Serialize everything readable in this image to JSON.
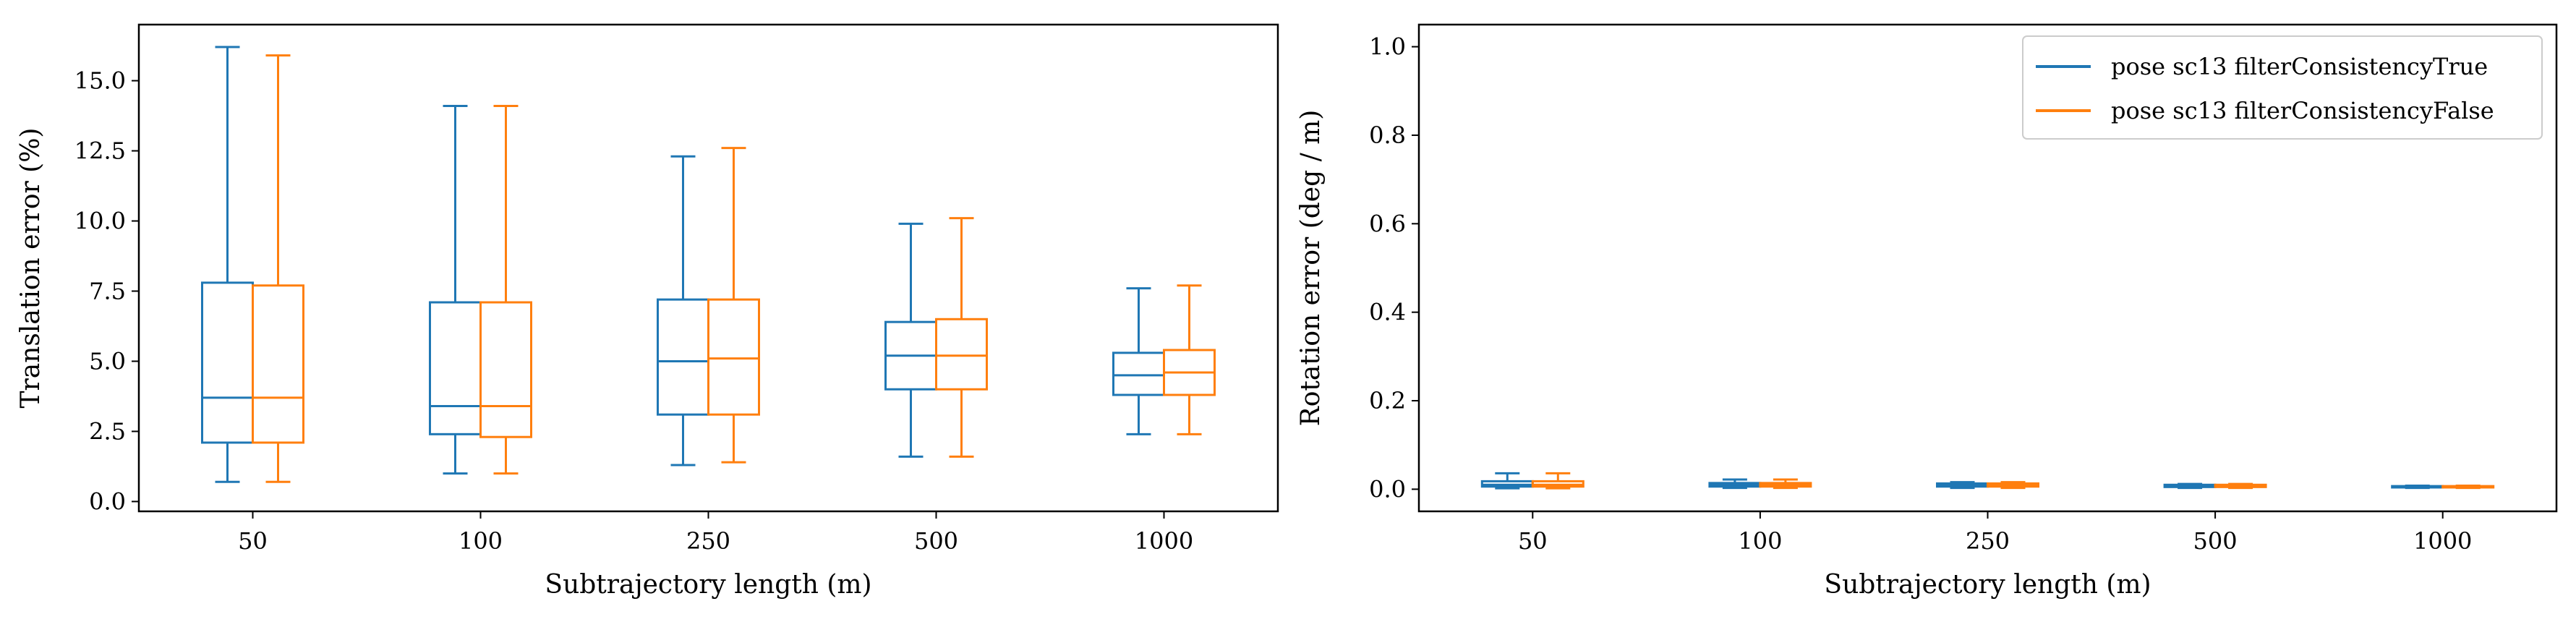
{
  "colors": {
    "series1": "#1f77b4",
    "series2": "#ff7f0e",
    "axis": "#000000"
  },
  "chart_data": [
    {
      "type": "box",
      "xlabel": "Subtrajectory length (m)",
      "ylabel": "Translation error (%)",
      "categories": [
        "50",
        "100",
        "250",
        "500",
        "1000"
      ],
      "ylim": [
        -0.35,
        17.0
      ],
      "yticks": [
        0.0,
        2.5,
        5.0,
        7.5,
        10.0,
        12.5,
        15.0
      ],
      "ytick_labels": [
        "0.0",
        "2.5",
        "5.0",
        "7.5",
        "10.0",
        "12.5",
        "15.0"
      ],
      "grid": false,
      "legend": null,
      "series": [
        {
          "name": "pose sc13 filterConsistencyTrue",
          "boxes": [
            {
              "min": 0.7,
              "q1": 2.1,
              "median": 3.7,
              "q3": 7.8,
              "max": 16.2
            },
            {
              "min": 1.0,
              "q1": 2.4,
              "median": 3.4,
              "q3": 7.1,
              "max": 14.1
            },
            {
              "min": 1.3,
              "q1": 3.1,
              "median": 5.0,
              "q3": 7.2,
              "max": 12.3
            },
            {
              "min": 1.6,
              "q1": 4.0,
              "median": 5.2,
              "q3": 6.4,
              "max": 9.9
            },
            {
              "min": 2.4,
              "q1": 3.8,
              "median": 4.5,
              "q3": 5.3,
              "max": 7.6
            }
          ]
        },
        {
          "name": "pose sc13 filterConsistencyFalse",
          "boxes": [
            {
              "min": 0.7,
              "q1": 2.1,
              "median": 3.7,
              "q3": 7.7,
              "max": 15.9
            },
            {
              "min": 1.0,
              "q1": 2.3,
              "median": 3.4,
              "q3": 7.1,
              "max": 14.1
            },
            {
              "min": 1.4,
              "q1": 3.1,
              "median": 5.1,
              "q3": 7.2,
              "max": 12.6
            },
            {
              "min": 1.6,
              "q1": 4.0,
              "median": 5.2,
              "q3": 6.5,
              "max": 10.1
            },
            {
              "min": 2.4,
              "q1": 3.8,
              "median": 4.6,
              "q3": 5.4,
              "max": 7.7
            }
          ]
        }
      ]
    },
    {
      "type": "box",
      "xlabel": "Subtrajectory length (m)",
      "ylabel": "Rotation error (deg / m)",
      "categories": [
        "50",
        "100",
        "250",
        "500",
        "1000"
      ],
      "ylim": [
        -0.05,
        1.05
      ],
      "yticks": [
        0.0,
        0.2,
        0.4,
        0.6,
        0.8,
        1.0
      ],
      "ytick_labels": [
        "0.0",
        "0.2",
        "0.4",
        "0.6",
        "0.8",
        "1.0"
      ],
      "grid": false,
      "legend": "top-right",
      "series": [
        {
          "name": "pose sc13 filterConsistencyTrue",
          "boxes": [
            {
              "min": 0.002,
              "q1": 0.006,
              "median": 0.01,
              "q3": 0.018,
              "max": 0.036
            },
            {
              "min": 0.003,
              "q1": 0.006,
              "median": 0.01,
              "q3": 0.014,
              "max": 0.022
            },
            {
              "min": 0.003,
              "q1": 0.006,
              "median": 0.009,
              "q3": 0.013,
              "max": 0.016
            },
            {
              "min": 0.003,
              "q1": 0.005,
              "median": 0.008,
              "q3": 0.01,
              "max": 0.012
            },
            {
              "min": 0.003,
              "q1": 0.004,
              "median": 0.005,
              "q3": 0.007,
              "max": 0.008
            }
          ]
        },
        {
          "name": "pose sc13 filterConsistencyFalse",
          "boxes": [
            {
              "min": 0.002,
              "q1": 0.006,
              "median": 0.01,
              "q3": 0.018,
              "max": 0.036
            },
            {
              "min": 0.003,
              "q1": 0.006,
              "median": 0.01,
              "q3": 0.014,
              "max": 0.022
            },
            {
              "min": 0.003,
              "q1": 0.006,
              "median": 0.009,
              "q3": 0.013,
              "max": 0.016
            },
            {
              "min": 0.003,
              "q1": 0.005,
              "median": 0.008,
              "q3": 0.01,
              "max": 0.012
            },
            {
              "min": 0.003,
              "q1": 0.004,
              "median": 0.005,
              "q3": 0.007,
              "max": 0.008
            }
          ]
        }
      ]
    }
  ]
}
